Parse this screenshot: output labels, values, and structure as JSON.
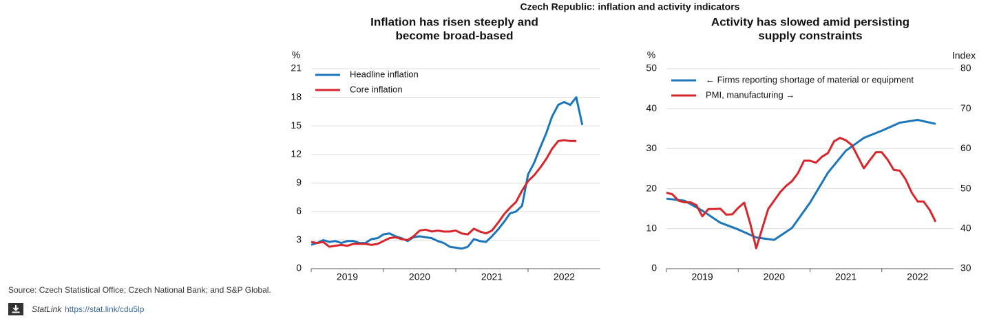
{
  "title": "Czech Republic: inflation and activity indicators",
  "source": "Source: Czech Statistical Office; Czech National Bank; and S&P Global.",
  "statlink": {
    "label": "StatLink",
    "url": "https://stat.link/cdu5lp"
  },
  "chart_data": [
    {
      "type": "line",
      "title": [
        "Inflation has risen steeply and",
        "become broad-based"
      ],
      "ylabel": "%",
      "xlim": [
        2019,
        2023
      ],
      "xticks": [
        2019,
        2020,
        2021,
        2022
      ],
      "ylim": [
        0,
        21
      ],
      "yticks": [
        0,
        3,
        6,
        9,
        12,
        15,
        18,
        21
      ],
      "grid": true,
      "legend": "upper left",
      "series": [
        {
          "name": "Headline inflation",
          "color": "#1b75bb",
          "x": [
            2019,
            2019.083,
            2019.167,
            2019.25,
            2019.333,
            2019.417,
            2019.5,
            2019.583,
            2019.667,
            2019.75,
            2019.833,
            2019.917,
            2020,
            2020.083,
            2020.167,
            2020.25,
            2020.333,
            2020.417,
            2020.5,
            2020.583,
            2020.667,
            2020.75,
            2020.833,
            2020.917,
            2021,
            2021.083,
            2021.167,
            2021.25,
            2021.333,
            2021.417,
            2021.5,
            2021.583,
            2021.667,
            2021.75,
            2021.833,
            2021.917,
            2022,
            2022.083,
            2022.167,
            2022.25,
            2022.333,
            2022.417,
            2022.5,
            2022.583,
            2022.667,
            2022.75
          ],
          "values": [
            2.5,
            2.7,
            3.0,
            2.8,
            2.9,
            2.7,
            2.9,
            2.9,
            2.7,
            2.7,
            3.1,
            3.2,
            3.6,
            3.7,
            3.4,
            3.2,
            2.9,
            3.3,
            3.4,
            3.3,
            3.2,
            2.9,
            2.7,
            2.3,
            2.2,
            2.1,
            2.3,
            3.1,
            2.9,
            2.8,
            3.4,
            4.1,
            4.9,
            5.8,
            6.0,
            6.6,
            9.9,
            11.1,
            12.7,
            14.2,
            16.0,
            17.2,
            17.5,
            17.2,
            18.0,
            15.1
          ]
        },
        {
          "name": "Core inflation",
          "color": "#d7262b",
          "x": [
            2019,
            2019.083,
            2019.167,
            2019.25,
            2019.333,
            2019.417,
            2019.5,
            2019.583,
            2019.667,
            2019.75,
            2019.833,
            2019.917,
            2020,
            2020.083,
            2020.167,
            2020.25,
            2020.333,
            2020.417,
            2020.5,
            2020.583,
            2020.667,
            2020.75,
            2020.833,
            2020.917,
            2021,
            2021.083,
            2021.167,
            2021.25,
            2021.333,
            2021.417,
            2021.5,
            2021.583,
            2021.667,
            2021.75,
            2021.833,
            2021.917,
            2022,
            2022.083,
            2022.167,
            2022.25,
            2022.333,
            2022.417,
            2022.5,
            2022.583,
            2022.667,
            2022.75
          ],
          "values": [
            2.8,
            2.7,
            2.8,
            2.3,
            2.4,
            2.5,
            2.4,
            2.6,
            2.6,
            2.6,
            2.5,
            2.6,
            2.9,
            3.2,
            3.3,
            3.1,
            3.0,
            3.4,
            4.0,
            4.1,
            3.9,
            4.0,
            3.9,
            3.9,
            4.0,
            3.7,
            3.6,
            4.2,
            3.9,
            3.7,
            4.0,
            4.8,
            5.7,
            6.4,
            7.0,
            8.2,
            9.2,
            9.8,
            10.6,
            11.5,
            12.6,
            13.4,
            13.5,
            13.4,
            13.4,
            null
          ]
        }
      ]
    },
    {
      "type": "line",
      "title": [
        "Activity has slowed amid persisting",
        "supply constraints"
      ],
      "ylabel": "%",
      "y2label": "Index",
      "xlim": [
        2019,
        2023
      ],
      "xticks": [
        2019,
        2020,
        2021,
        2022
      ],
      "ylim": [
        0,
        50
      ],
      "yticks": [
        0,
        10,
        20,
        30,
        40,
        50
      ],
      "y2lim": [
        30,
        80
      ],
      "y2ticks": [
        30,
        40,
        50,
        60,
        70,
        80
      ],
      "grid": true,
      "legend": "upper left",
      "series": [
        {
          "name": "← Firms reporting shortage of material or equipment",
          "color": "#1b75bb",
          "x": [
            2019,
            2019.25,
            2019.5,
            2019.75,
            2020,
            2020.25,
            2020.5,
            2020.75,
            2021,
            2021.25,
            2021.5,
            2021.75,
            2022,
            2022.25,
            2022.5,
            2022.75
          ],
          "values": [
            17.5,
            17.0,
            14.5,
            11.5,
            9.8,
            7.8,
            7.2,
            10.2,
            16.5,
            24.0,
            29.5,
            32.7,
            34.5,
            36.5,
            37.2,
            36.2
          ]
        },
        {
          "name": "PMI, manufacturing →",
          "color": "#d7262b",
          "axis": "y2",
          "x": [
            2019,
            2019.083,
            2019.167,
            2019.25,
            2019.333,
            2019.417,
            2019.5,
            2019.583,
            2019.667,
            2019.75,
            2019.833,
            2019.917,
            2020,
            2020.083,
            2020.167,
            2020.25,
            2020.333,
            2020.417,
            2020.5,
            2020.583,
            2020.667,
            2020.75,
            2020.833,
            2020.917,
            2021,
            2021.083,
            2021.167,
            2021.25,
            2021.333,
            2021.417,
            2021.5,
            2021.583,
            2021.667,
            2021.75,
            2021.833,
            2021.917,
            2022,
            2022.083,
            2022.167,
            2022.25,
            2022.333,
            2022.417,
            2022.5,
            2022.583,
            2022.667,
            2022.75
          ],
          "values": [
            49.0,
            48.6,
            47.0,
            46.6,
            46.6,
            45.9,
            43.1,
            44.9,
            44.9,
            45.0,
            43.5,
            43.6,
            45.2,
            46.5,
            41.3,
            35.1,
            40.0,
            44.9,
            47.0,
            49.1,
            50.7,
            51.9,
            53.9,
            57.0,
            57.0,
            56.5,
            58.0,
            58.9,
            61.8,
            62.7,
            62.1,
            60.9,
            58.0,
            55.1,
            57.1,
            59.1,
            59.1,
            57.2,
            54.7,
            54.5,
            52.3,
            49.0,
            46.8,
            46.8,
            44.7,
            41.7
          ]
        }
      ]
    }
  ]
}
